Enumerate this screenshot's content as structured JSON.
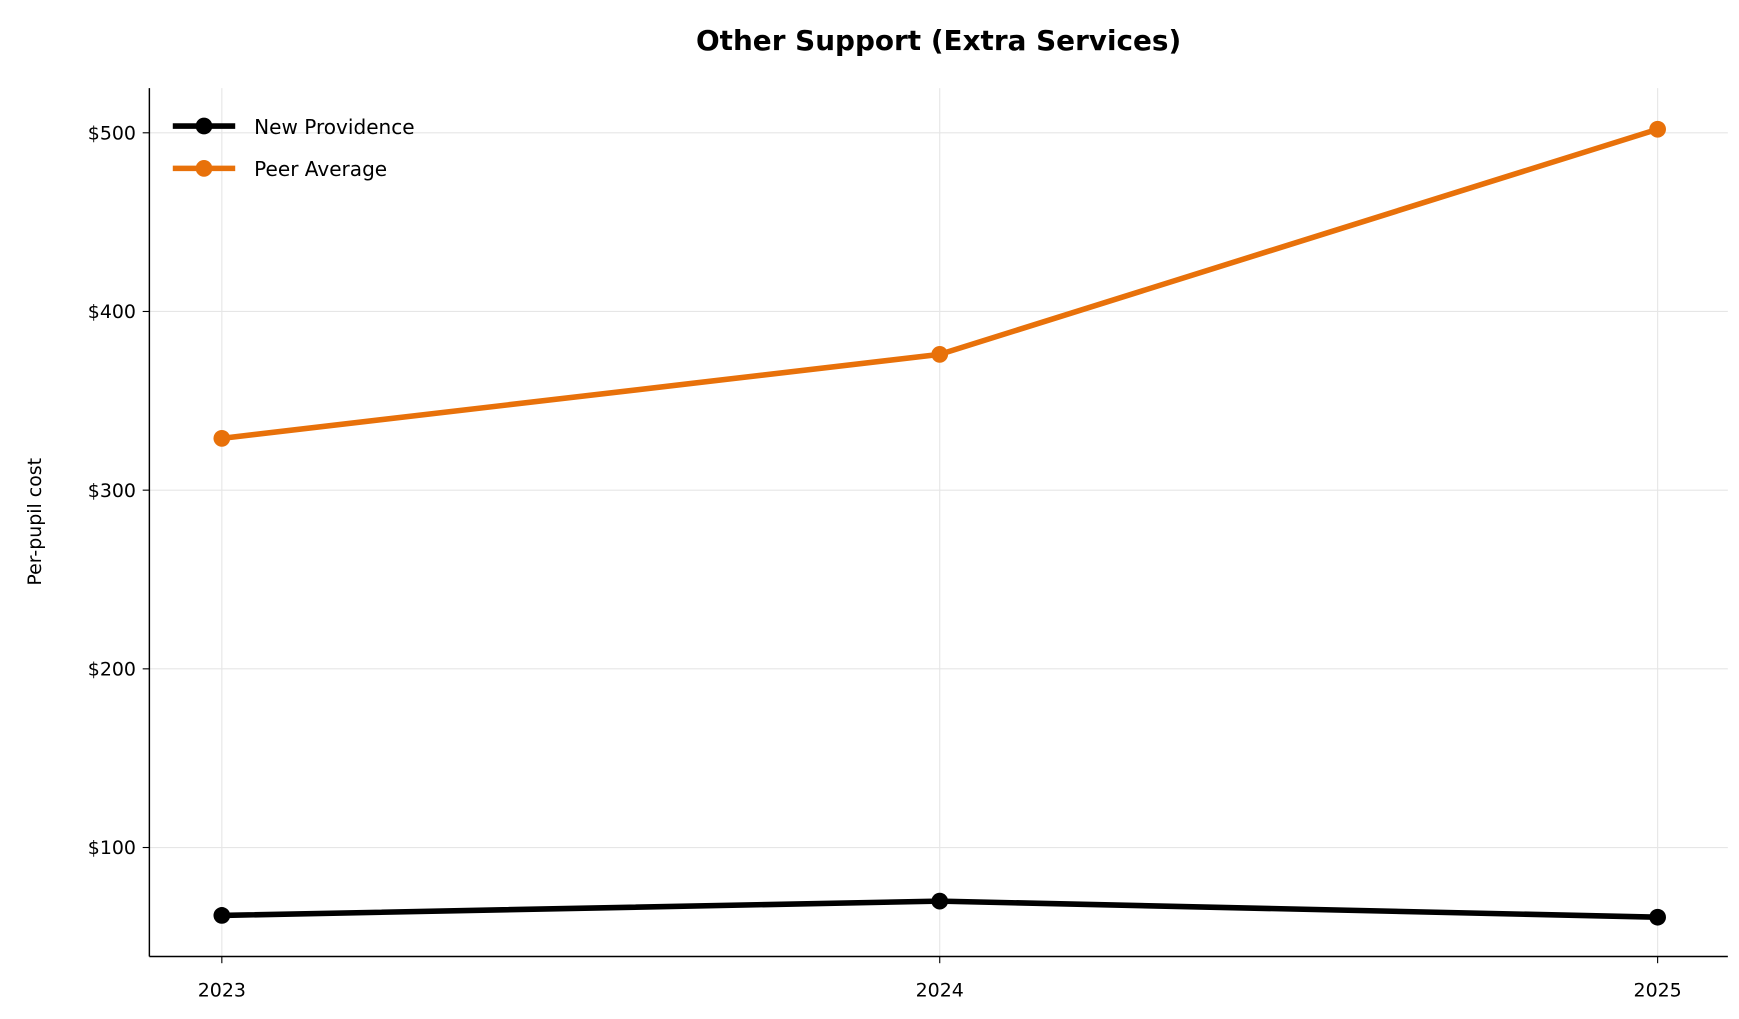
{
  "chart_data": {
    "type": "line",
    "title": "Other Support (Extra Services)",
    "xlabel": "",
    "ylabel": "Per-pupil cost",
    "categories": [
      "2023",
      "2024",
      "2025"
    ],
    "series": [
      {
        "name": "New Providence",
        "values": [
          62,
          70,
          61
        ],
        "color": "#000000"
      },
      {
        "name": "Peer Average",
        "values": [
          329,
          376,
          502
        ],
        "color": "#E8710A"
      }
    ],
    "yticks": [
      100,
      200,
      300,
      400,
      500
    ],
    "ytick_labels": [
      "$100",
      "$200",
      "$300",
      "$400",
      "$500"
    ],
    "ylim": [
      39,
      525
    ],
    "grid": true,
    "legend": "top-left",
    "grid_color": "#e6e6e6"
  }
}
